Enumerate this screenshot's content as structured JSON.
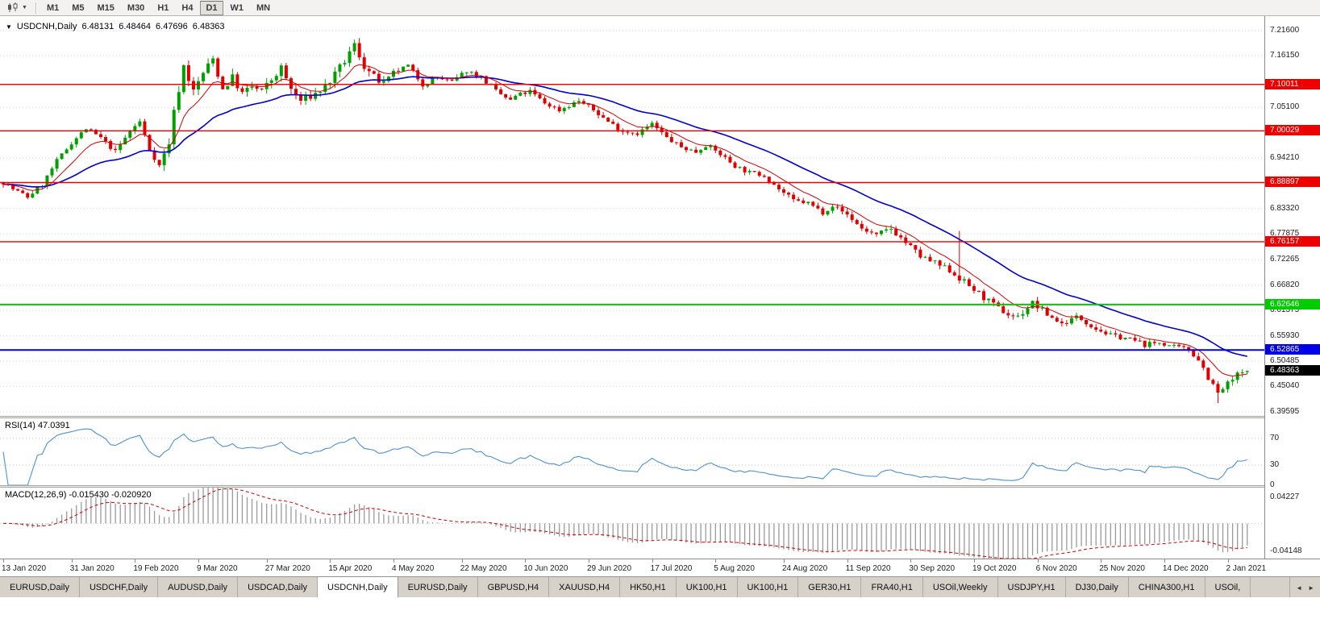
{
  "toolbar": {
    "chart_type_tooltip": "Candlesticks",
    "timeframes": [
      "M1",
      "M5",
      "M15",
      "M30",
      "H1",
      "H4",
      "D1",
      "W1",
      "MN"
    ],
    "active_timeframe": "D1"
  },
  "chart": {
    "symbol_period": "USDCNH,Daily",
    "ohlc": {
      "open": "6.48131",
      "high": "6.48464",
      "low": "6.47696",
      "close": "6.48363"
    },
    "price_scale_labels": [
      "7.21600",
      "7.16150",
      "7.05100",
      "6.94210",
      "6.83320",
      "6.77875",
      "6.72265",
      "6.66820",
      "6.61375",
      "6.55930",
      "6.50485",
      "6.45040",
      "6.39595"
    ],
    "current_price_badge": {
      "label": "6.48363",
      "price": 6.48363,
      "color": "#000000"
    }
  },
  "rsi": {
    "label": "RSI(14) 47.0391",
    "scale_labels": [
      "70",
      "30",
      "0"
    ]
  },
  "macd": {
    "label": "MACD(12,26,9) -0.015430 -0.020920",
    "scale_top": "0.04227",
    "scale_bottom": "-0.04148"
  },
  "tabs": {
    "items": [
      "EURUSD,Daily",
      "USDCHF,Daily",
      "AUDUSD,Daily",
      "USDCAD,Daily",
      "USDCNH,Daily",
      "EURUSD,Daily",
      "GBPUSD,H4",
      "XAUUSD,H4",
      "HK50,H1",
      "UK100,H1",
      "UK100,H1",
      "GER30,H1",
      "FRA40,H1",
      "USOil,Weekly",
      "USDJPY,H1",
      "DJ30,Daily",
      "CHINA300,H1",
      "USOil,"
    ],
    "active_index": 4,
    "scroll_left": "◄",
    "scroll_right": "►"
  },
  "chart_data": {
    "type": "candlestick",
    "symbol": "USDCNH",
    "timeframe": "Daily",
    "bars": 256,
    "price_range": {
      "min": 6.387,
      "max": 7.247
    },
    "x_tick_bars": [
      0,
      14,
      27,
      40,
      54,
      67,
      80,
      94,
      107,
      120,
      133,
      146,
      160,
      173,
      186,
      199,
      212,
      225,
      238,
      251
    ],
    "x_tick_labels": [
      "13 Jan 2020",
      "31 Jan 2020",
      "19 Feb 2020",
      "9 Mar 2020",
      "27 Mar 2020",
      "15 Apr 2020",
      "4 May 2020",
      "22 May 2020",
      "10 Jun 2020",
      "29 Jun 2020",
      "17 Jul 2020",
      "5 Aug 2020",
      "24 Aug 2020",
      "11 Sep 2020",
      "30 Sep 2020",
      "19 Oct 2020",
      "6 Nov 2020",
      "25 Nov 2020",
      "14 Dec 2020",
      "2 Jan 2021"
    ],
    "horizontal_lines": [
      {
        "price": 7.10011,
        "label": "7.10011",
        "color": "#EE0000",
        "width": 1.4
      },
      {
        "price": 7.00029,
        "label": "7.00029",
        "color": "#EE0000",
        "width": 1.4
      },
      {
        "price": 6.88897,
        "label": "6.88897",
        "color": "#EE0000",
        "width": 1.4
      },
      {
        "price": 6.76157,
        "label": "6.76157",
        "color": "#EE0000",
        "width": 1.4
      },
      {
        "price": 6.62646,
        "label": "6.62646",
        "color": "#00CC00",
        "width": 2
      },
      {
        "price": 6.52865,
        "label": "6.52865",
        "color": "#0000E6",
        "width": 2
      }
    ],
    "price_path_waypoints": [
      [
        0,
        6.89
      ],
      [
        2,
        6.875
      ],
      [
        5,
        6.858
      ],
      [
        8,
        6.885
      ],
      [
        11,
        6.935
      ],
      [
        14,
        6.975
      ],
      [
        17,
        7.005
      ],
      [
        20,
        6.985
      ],
      [
        23,
        6.955
      ],
      [
        26,
        7.0
      ],
      [
        28,
        7.02
      ],
      [
        30,
        6.96
      ],
      [
        32,
        6.925
      ],
      [
        34,
        6.975
      ],
      [
        35,
        7.04
      ],
      [
        37,
        7.14
      ],
      [
        39,
        7.085
      ],
      [
        41,
        7.125
      ],
      [
        43,
        7.155
      ],
      [
        45,
        7.09
      ],
      [
        47,
        7.115
      ],
      [
        49,
        7.08
      ],
      [
        51,
        7.095
      ],
      [
        53,
        7.085
      ],
      [
        55,
        7.11
      ],
      [
        57,
        7.135
      ],
      [
        59,
        7.09
      ],
      [
        61,
        7.065
      ],
      [
        64,
        7.08
      ],
      [
        66,
        7.095
      ],
      [
        68,
        7.12
      ],
      [
        70,
        7.15
      ],
      [
        72,
        7.185
      ],
      [
        74,
        7.14
      ],
      [
        76,
        7.115
      ],
      [
        78,
        7.1
      ],
      [
        80,
        7.125
      ],
      [
        83,
        7.14
      ],
      [
        86,
        7.1
      ],
      [
        89,
        7.115
      ],
      [
        92,
        7.105
      ],
      [
        95,
        7.13
      ],
      [
        98,
        7.115
      ],
      [
        101,
        7.085
      ],
      [
        104,
        7.065
      ],
      [
        105,
        7.075
      ],
      [
        108,
        7.085
      ],
      [
        111,
        7.06
      ],
      [
        114,
        7.045
      ],
      [
        117,
        7.06
      ],
      [
        118,
        7.065
      ],
      [
        121,
        7.045
      ],
      [
        124,
        7.02
      ],
      [
        127,
        7.0
      ],
      [
        130,
        6.995
      ],
      [
        133,
        7.015
      ],
      [
        136,
        6.985
      ],
      [
        139,
        6.965
      ],
      [
        142,
        6.955
      ],
      [
        144,
        6.97
      ],
      [
        147,
        6.95
      ],
      [
        150,
        6.925
      ],
      [
        153,
        6.91
      ],
      [
        156,
        6.905
      ],
      [
        159,
        6.875
      ],
      [
        162,
        6.85
      ],
      [
        165,
        6.845
      ],
      [
        168,
        6.825
      ],
      [
        170,
        6.84
      ],
      [
        173,
        6.82
      ],
      [
        176,
        6.79
      ],
      [
        179,
        6.775
      ],
      [
        182,
        6.79
      ],
      [
        185,
        6.76
      ],
      [
        188,
        6.73
      ],
      [
        191,
        6.715
      ],
      [
        194,
        6.7
      ],
      [
        197,
        6.675
      ],
      [
        200,
        6.65
      ],
      [
        203,
        6.625
      ],
      [
        206,
        6.605
      ],
      [
        208,
        6.6
      ],
      [
        211,
        6.63
      ],
      [
        214,
        6.605
      ],
      [
        217,
        6.585
      ],
      [
        220,
        6.6
      ],
      [
        221,
        6.595
      ],
      [
        224,
        6.575
      ],
      [
        227,
        6.56
      ],
      [
        230,
        6.555
      ],
      [
        233,
        6.545
      ],
      [
        234,
        6.54
      ],
      [
        237,
        6.545
      ],
      [
        240,
        6.535
      ],
      [
        243,
        6.53
      ],
      [
        245,
        6.51
      ],
      [
        247,
        6.47
      ],
      [
        249,
        6.435
      ],
      [
        251,
        6.455
      ],
      [
        253,
        6.475
      ],
      [
        255,
        6.4836
      ]
    ],
    "forced_points": {
      "peak_bar": 72,
      "peak_high": 7.1965,
      "spike_bar": 196,
      "spike_high": 6.785,
      "low_bar": 249,
      "low_value": 6.4145
    },
    "last_ohlc": [
      6.48131,
      6.48464,
      6.47696,
      6.48363
    ],
    "candle_up_color": "#00A000",
    "candle_down_color": "#E00000",
    "ma_fast": {
      "period": 9,
      "color": "#D40000"
    },
    "ma_slow": {
      "period": 30,
      "color": "#0000D0"
    },
    "rsi": {
      "period": 14,
      "last_value": 47.0391,
      "color": "#4f90d0",
      "range": [
        0,
        100
      ],
      "levels": [
        70,
        30
      ]
    },
    "macd": {
      "fast": 12,
      "slow": 26,
      "signal": 9,
      "macd_value": -0.01543,
      "signal_value": -0.02092,
      "range": [
        -0.0415,
        0.0423
      ],
      "histogram_color": "#9a9a9a",
      "signal_color": "#D00000"
    }
  }
}
